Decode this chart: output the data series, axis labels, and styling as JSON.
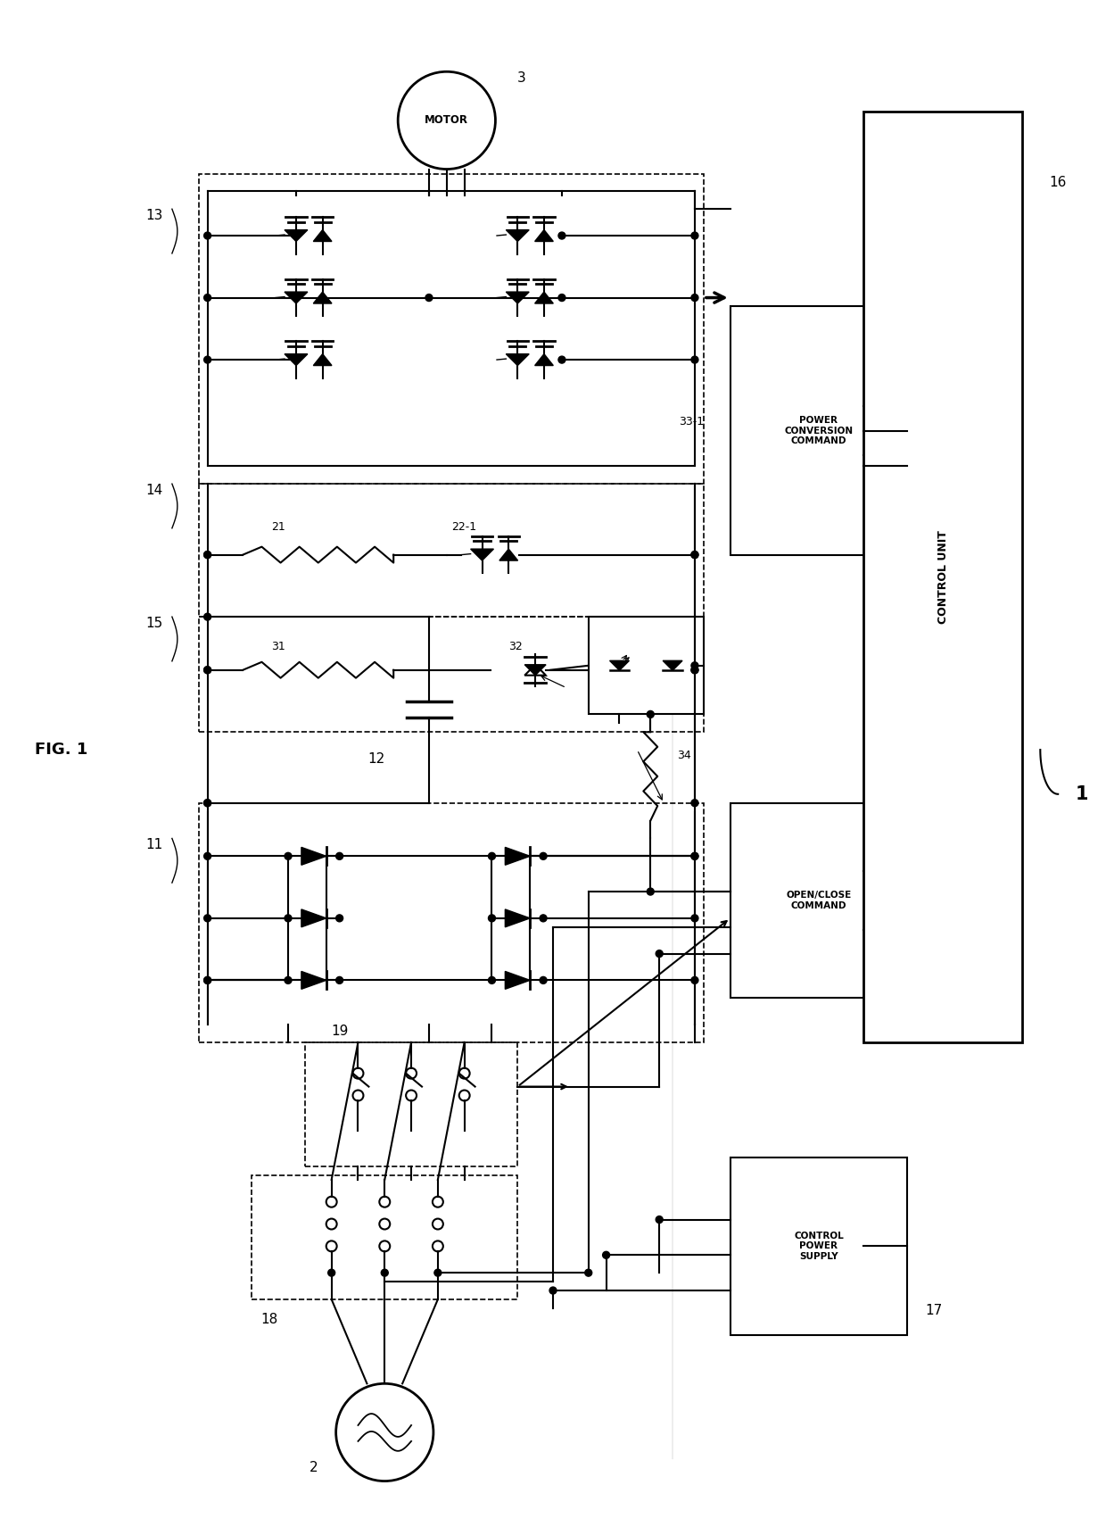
{
  "bg_color": "#ffffff",
  "line_color": "#000000",
  "fig_label": "FIG. 1",
  "labels": {
    "motor": "MOTOR",
    "label_1": "1",
    "label_2": "2",
    "label_3": "3",
    "label_11": "11",
    "label_12": "12",
    "label_13": "13",
    "label_14": "14",
    "label_15": "15",
    "label_16": "16",
    "label_17": "17",
    "label_18": "18",
    "label_19": "19",
    "label_21": "21",
    "label_22": "22-1",
    "label_31": "31",
    "label_32": "32",
    "label_33": "33-1",
    "label_34": "34",
    "control_unit": "CONTROL UNIT",
    "pcc": "POWER\nCONVERSION\nCOMMAND",
    "occ": "OPEN/CLOSE\nCOMMAND",
    "cps": "CONTROL\nPOWER\nSUPPLY"
  }
}
